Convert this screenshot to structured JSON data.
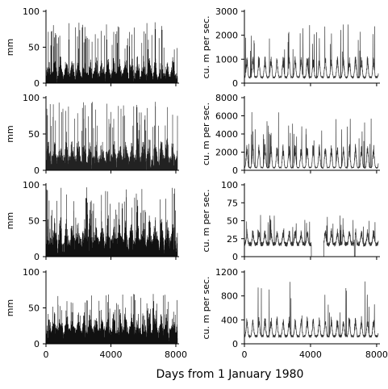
{
  "figure": {
    "xlabel": "Days from 1 January 1980"
  },
  "chart_data": [
    {
      "type": "line",
      "style": "hyetograph",
      "panel": "precipitation row 1",
      "ylabel": "mm",
      "xlim": [
        0,
        8200
      ],
      "ylim": [
        0,
        100
      ],
      "yticks": [
        0,
        50,
        100
      ],
      "xticks": [
        0,
        4000,
        8000
      ],
      "show_xticks": false,
      "color": "#111111",
      "series": [
        {
          "x": [],
          "values": []
        }
      ],
      "params": {
        "base": 14,
        "amp": 26,
        "mx": 85,
        "seed": 11
      }
    },
    {
      "type": "line",
      "style": "hydrograph",
      "panel": "streamflow row 1",
      "ylabel": "cu. m per sec.",
      "xlim": [
        0,
        8200
      ],
      "ylim": [
        0,
        3000
      ],
      "yticks": [
        0,
        1000,
        2000,
        3000
      ],
      "xticks": [
        0,
        4000,
        8000
      ],
      "show_xticks": false,
      "color": "#333333",
      "series": [
        {
          "x": [],
          "values": []
        }
      ],
      "params": {
        "low": 250,
        "peak": 1000,
        "mx": 2500,
        "seed": 21
      }
    },
    {
      "type": "line",
      "style": "hyetograph",
      "panel": "precipitation row 2",
      "ylabel": "mm",
      "xlim": [
        0,
        8200
      ],
      "ylim": [
        0,
        100
      ],
      "yticks": [
        0,
        50,
        100
      ],
      "xticks": [
        0,
        4000,
        8000
      ],
      "show_xticks": false,
      "color": "#222222",
      "series": [
        {
          "x": [],
          "values": []
        }
      ],
      "params": {
        "base": 20,
        "amp": 30,
        "mx": 95,
        "seed": 12
      }
    },
    {
      "type": "line",
      "style": "hydrograph",
      "panel": "streamflow row 2",
      "ylabel": "cu. m per sec.",
      "xlim": [
        0,
        8200
      ],
      "ylim": [
        0,
        8000
      ],
      "yticks": [
        0,
        2000,
        4000,
        6000,
        8000
      ],
      "xticks": [
        0,
        4000,
        8000
      ],
      "show_xticks": false,
      "color": "#333333",
      "series": [
        {
          "x": [],
          "values": []
        }
      ],
      "params": {
        "low": 300,
        "peak": 2500,
        "mx": 6500,
        "seed": 22
      }
    },
    {
      "type": "line",
      "style": "hyetograph",
      "panel": "precipitation row 3",
      "ylabel": "mm",
      "xlim": [
        0,
        8200
      ],
      "ylim": [
        0,
        100
      ],
      "yticks": [
        0,
        50,
        100
      ],
      "xticks": [
        0,
        4000,
        8000
      ],
      "show_xticks": false,
      "color": "#111111",
      "series": [
        {
          "x": [],
          "values": []
        }
      ],
      "params": {
        "base": 25,
        "amp": 35,
        "mx": 98,
        "seed": 13
      }
    },
    {
      "type": "line",
      "style": "hydrograph",
      "panel": "streamflow row 3",
      "ylabel": "cu. m per sec.",
      "xlim": [
        0,
        8200
      ],
      "ylim": [
        0,
        100
      ],
      "yticks": [
        0,
        25,
        50,
        75,
        100
      ],
      "xticks": [
        0,
        4000,
        8000
      ],
      "show_xticks": false,
      "color": "#333333",
      "series": [
        {
          "x": [],
          "values": []
        }
      ],
      "params": {
        "low": 18,
        "peak": 35,
        "mx": 60,
        "seed": 23,
        "gaps": [
          [
            4050,
            4800
          ],
          [
            6650,
            6700
          ]
        ]
      }
    },
    {
      "type": "line",
      "style": "hyetograph",
      "panel": "precipitation row 4",
      "ylabel": "mm",
      "xlim": [
        0,
        8200
      ],
      "ylim": [
        0,
        100
      ],
      "yticks": [
        0,
        50,
        100
      ],
      "xticks": [
        0,
        4000,
        8000
      ],
      "show_xticks": true,
      "color": "#111111",
      "series": [
        {
          "x": [],
          "values": []
        }
      ],
      "params": {
        "base": 22,
        "amp": 30,
        "mx": 70,
        "seed": 14
      }
    },
    {
      "type": "line",
      "style": "hydrograph",
      "panel": "streamflow row 4",
      "ylabel": "cu. m per sec.",
      "xlim": [
        0,
        8200
      ],
      "ylim": [
        0,
        1200
      ],
      "yticks": [
        0,
        400,
        800,
        1200
      ],
      "xticks": [
        0,
        4000,
        8000
      ],
      "show_xticks": true,
      "color": "#333333",
      "series": [
        {
          "x": [],
          "values": []
        }
      ],
      "params": {
        "low": 130,
        "peak": 400,
        "mx": 1050,
        "seed": 24
      }
    }
  ]
}
